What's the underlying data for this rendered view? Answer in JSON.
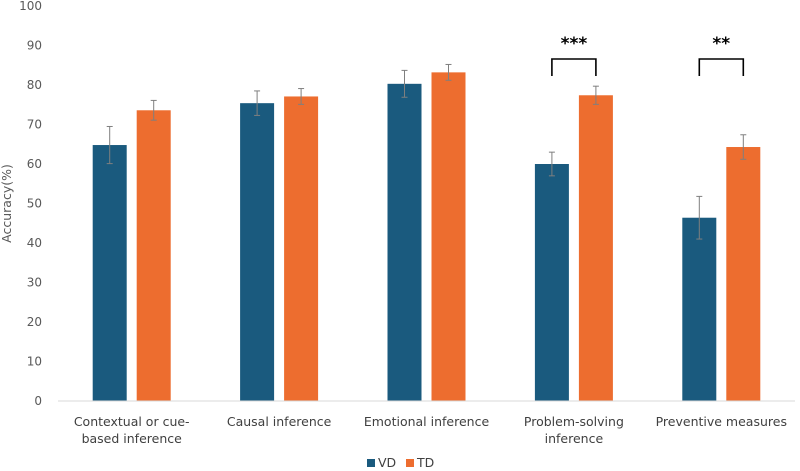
{
  "chart_data": {
    "type": "bar",
    "ylabel": "Accuracy(%)",
    "ylim": [
      0,
      100
    ],
    "yticks": [
      0,
      10,
      20,
      30,
      40,
      50,
      60,
      70,
      80,
      90,
      100
    ],
    "grid": false,
    "legend_position": "bottom",
    "categories": [
      [
        "Contextual or cue-",
        "based inference"
      ],
      [
        "Causal inference"
      ],
      [
        "Emotional inference"
      ],
      [
        "Problem-solving",
        "inference"
      ],
      [
        "Preventive measures"
      ]
    ],
    "series": [
      {
        "name": "VD",
        "color": "#1a5a7e",
        "values": [
          64.8,
          75.4,
          80.3,
          60.0,
          46.4
        ],
        "errors": [
          4.7,
          3.1,
          3.4,
          3.0,
          5.4
        ]
      },
      {
        "name": "TD",
        "color": "#ed6d2f",
        "values": [
          73.6,
          77.1,
          83.2,
          77.4,
          64.3
        ],
        "errors": [
          2.5,
          2.0,
          2.0,
          2.3,
          3.1
        ]
      }
    ],
    "annotations": [
      {
        "category_index": 3,
        "text": "***"
      },
      {
        "category_index": 4,
        "text": "**"
      }
    ]
  }
}
